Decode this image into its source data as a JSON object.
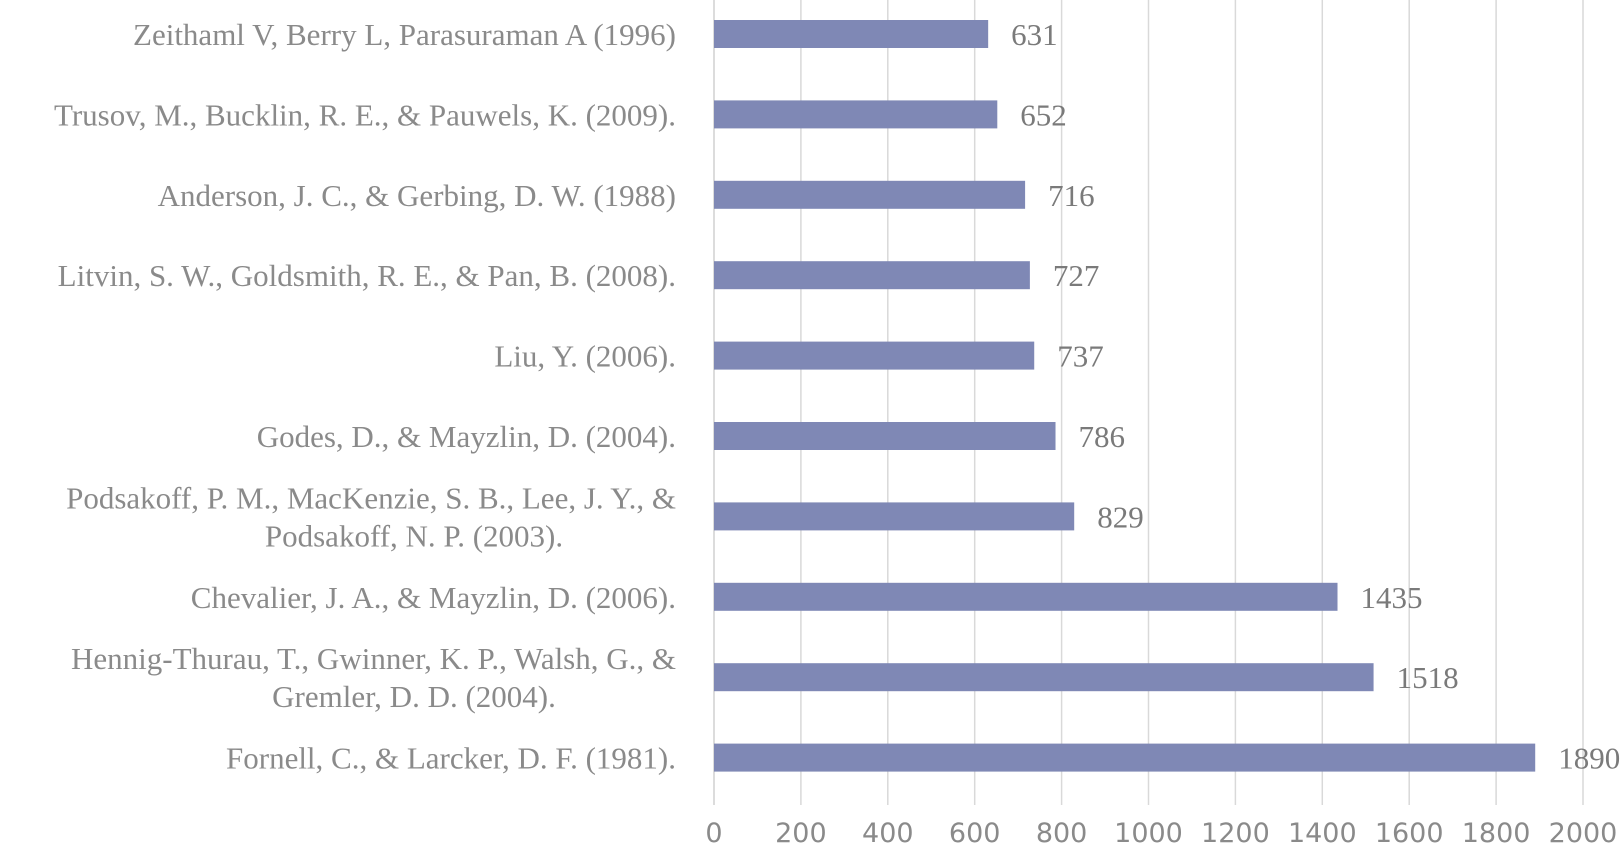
{
  "chart_data": {
    "type": "bar",
    "orientation": "horizontal",
    "title": "",
    "xlabel": "",
    "ylabel": "",
    "categories": [
      [
        "Zeithaml V, Berry L, Parasuraman A (1996)"
      ],
      [
        "Trusov, M., Bucklin, R. E., & Pauwels, K. (2009)."
      ],
      [
        "Anderson, J. C., & Gerbing, D. W. (1988)"
      ],
      [
        "Litvin, S. W., Goldsmith, R. E., & Pan, B. (2008)."
      ],
      [
        "Liu, Y. (2006)."
      ],
      [
        "Godes, D., & Mayzlin, D. (2004)."
      ],
      [
        "Podsakoff, P. M., MacKenzie, S. B., Lee, J. Y., &",
        "Podsakoff, N. P. (2003)."
      ],
      [
        "Chevalier, J. A., & Mayzlin, D. (2006)."
      ],
      [
        "Hennig-Thurau, T., Gwinner, K. P., Walsh, G., &",
        "Gremler, D. D. (2004)."
      ],
      [
        "Fornell, C., & Larcker, D. F. (1981)."
      ]
    ],
    "values": [
      631,
      652,
      716,
      727,
      737,
      786,
      829,
      1435,
      1518,
      1890
    ],
    "data_labels": [
      "631",
      "652",
      "716",
      "727",
      "737",
      "786",
      "829",
      "1435",
      "1518",
      "1890"
    ],
    "xlim": [
      0,
      2000
    ],
    "xticks": [
      0,
      200,
      400,
      600,
      800,
      1000,
      1200,
      1400,
      1600,
      1800,
      2000
    ],
    "xtick_labels": [
      "0",
      "200",
      "400",
      "600",
      "800",
      "1000",
      "1200",
      "1400",
      "1600",
      "1800",
      "2000"
    ],
    "grid": "vertical",
    "legend": "none",
    "bar_color": "#7f88b5"
  }
}
